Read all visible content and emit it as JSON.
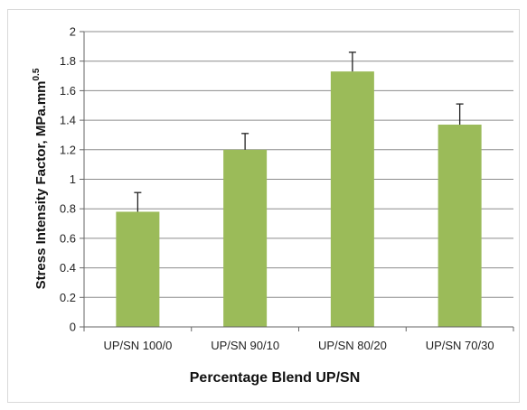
{
  "chart_data": {
    "type": "bar",
    "categories": [
      "UP/SN 100/0",
      "UP/SN 90/10",
      "UP/SN 80/20",
      "UP/SN 70/30"
    ],
    "values": [
      0.78,
      1.2,
      1.73,
      1.37
    ],
    "error_bars": [
      0.13,
      0.11,
      0.13,
      0.14
    ],
    "xlabel": "Percentage Blend UP/SN",
    "ylabel": "Stress Intensity Factor, MPa.mm",
    "ylabel_superscript": "0.5",
    "ylim": [
      0,
      2
    ],
    "yticks": [
      "0",
      "0.2",
      "0.4",
      "0.6",
      "0.8",
      "1",
      "1.2",
      "1.4",
      "1.6",
      "1.8",
      "2"
    ],
    "bar_color": "#9bbb59",
    "grid": true,
    "legend": "none"
  }
}
